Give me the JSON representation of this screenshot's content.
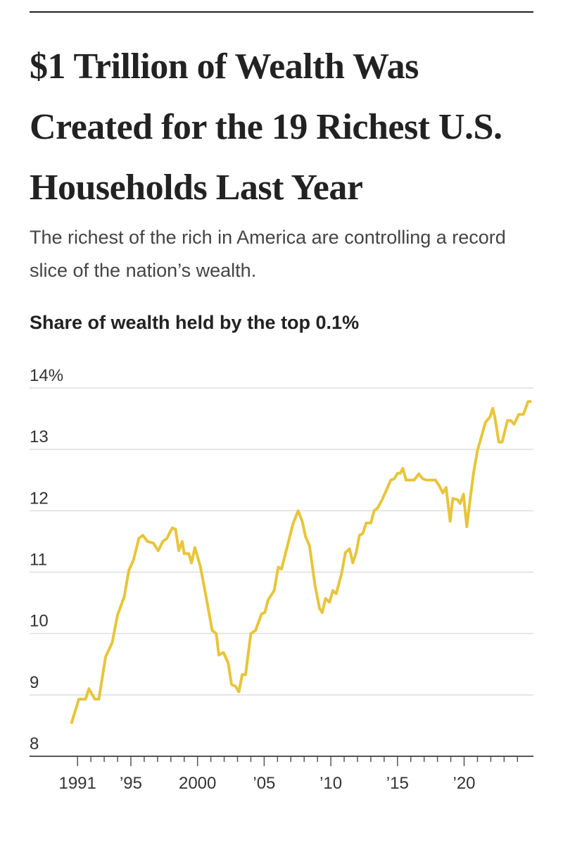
{
  "chart_data": {
    "type": "line",
    "title": "$1 Trillion of Wealth Was Created for the 19 Richest U.S. Households Last Year",
    "subtitle": "The richest of the rich in America are controlling a record slice of the nation’s wealth.",
    "chart_title": "Share of wealth held by the top 0.1%",
    "x": [
      1990.53,
      1991.1,
      1991.6,
      1991.85,
      1992.3,
      1992.6,
      1993.1,
      1993.6,
      1994.0,
      1994.5,
      1994.85,
      1995.2,
      1995.6,
      1995.9,
      1996.25,
      1996.7,
      1997.05,
      1997.4,
      1997.7,
      1998.1,
      1998.35,
      1998.6,
      1998.85,
      1999.0,
      1999.35,
      1999.55,
      1999.8,
      2000.2,
      2000.6,
      2001.1,
      2001.4,
      2001.6,
      2001.95,
      2002.3,
      2002.55,
      2002.85,
      2003.1,
      2003.35,
      2003.6,
      2004.0,
      2004.35,
      2004.8,
      2005.05,
      2005.3,
      2005.75,
      2006.05,
      2006.3,
      2006.75,
      2007.15,
      2007.55,
      2007.85,
      2008.1,
      2008.4,
      2008.8,
      2009.15,
      2009.35,
      2009.6,
      2009.9,
      2010.15,
      2010.4,
      2010.8,
      2011.1,
      2011.4,
      2011.65,
      2011.9,
      2012.15,
      2012.4,
      2012.65,
      2013.0,
      2013.25,
      2013.5,
      2013.85,
      2014.2,
      2014.5,
      2014.75,
      2015.0,
      2015.2,
      2015.4,
      2015.65,
      2015.95,
      2016.25,
      2016.6,
      2016.9,
      2017.2,
      2017.5,
      2017.85,
      2018.15,
      2018.4,
      2018.65,
      2018.95,
      2019.15,
      2019.5,
      2019.7,
      2019.95,
      2020.2,
      2020.45,
      2020.7,
      2021.0,
      2021.3,
      2021.6,
      2021.95,
      2022.15,
      2022.3,
      2022.6,
      2022.85,
      2023.25,
      2023.5,
      2023.75,
      2024.1,
      2024.45,
      2024.8,
      2025.05
    ],
    "series": [
      {
        "name": "Top 0.1% share",
        "color": "#e8c53a",
        "values": [
          8.53,
          8.93,
          8.93,
          9.1,
          8.93,
          8.93,
          9.62,
          9.85,
          10.3,
          10.6,
          11.03,
          11.2,
          11.55,
          11.6,
          11.5,
          11.47,
          11.35,
          11.5,
          11.55,
          11.72,
          11.7,
          11.35,
          11.5,
          11.3,
          11.3,
          11.15,
          11.4,
          11.1,
          10.65,
          10.05,
          10.0,
          9.65,
          9.69,
          9.52,
          9.17,
          9.14,
          9.05,
          9.33,
          9.33,
          10.0,
          10.05,
          10.32,
          10.34,
          10.55,
          10.7,
          11.08,
          11.05,
          11.43,
          11.78,
          12.0,
          11.83,
          11.58,
          11.43,
          10.8,
          10.41,
          10.34,
          10.57,
          10.51,
          10.7,
          10.65,
          10.97,
          11.32,
          11.38,
          11.15,
          11.32,
          11.6,
          11.63,
          11.8,
          11.8,
          12.0,
          12.04,
          12.18,
          12.35,
          12.5,
          12.52,
          12.61,
          12.61,
          12.69,
          12.5,
          12.5,
          12.5,
          12.6,
          12.52,
          12.5,
          12.5,
          12.5,
          12.4,
          12.29,
          12.38,
          11.83,
          12.2,
          12.18,
          12.12,
          12.27,
          11.74,
          12.18,
          12.61,
          12.98,
          13.21,
          13.44,
          13.53,
          13.67,
          13.53,
          13.12,
          13.12,
          13.47,
          13.47,
          13.41,
          13.57,
          13.57,
          13.78,
          13.78
        ]
      }
    ],
    "xlim": [
      1987.4,
      2025.2
    ],
    "xticks": [
      {
        "value": 1991,
        "label": "1991"
      },
      {
        "value": 1995,
        "label": "’95"
      },
      2000,
      {
        "value": 2005,
        "label": "’05"
      },
      {
        "value": 2010,
        "label": "’10"
      },
      {
        "value": 2015,
        "label": "’15"
      },
      {
        "value": 2020,
        "label": "’20"
      }
    ],
    "minor_xticks": [
      1992,
      1993,
      1994,
      1996,
      1997,
      1998,
      1999,
      2001,
      2002,
      2003,
      2004,
      2006,
      2007,
      2008,
      2009,
      2011,
      2012,
      2013,
      2014,
      2016,
      2017,
      2018,
      2019,
      2021,
      2022,
      2023,
      2024
    ],
    "ylim": [
      8,
      14
    ],
    "yticks": [
      {
        "value": 14,
        "label": "14%"
      },
      13,
      12,
      11,
      10,
      9,
      8
    ],
    "grid": true
  }
}
